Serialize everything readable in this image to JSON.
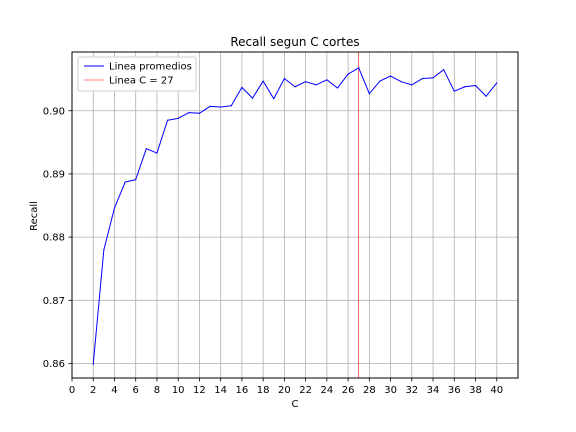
{
  "chart_data": {
    "type": "line",
    "title": "Recall segun C cortes",
    "xlabel": "C",
    "ylabel": "Recall",
    "xlim": [
      0,
      42
    ],
    "ylim": [
      0.8577,
      0.9093
    ],
    "xticks": [
      0,
      2,
      4,
      6,
      8,
      10,
      12,
      14,
      16,
      18,
      20,
      22,
      24,
      26,
      28,
      30,
      32,
      34,
      36,
      38,
      40
    ],
    "yticks": [
      0.86,
      0.87,
      0.88,
      0.89,
      0.9
    ],
    "ytick_labels": [
      "0.86",
      "0.87",
      "0.88",
      "0.89",
      "0.90"
    ],
    "grid": true,
    "legend_position": "top-left",
    "series": [
      {
        "name": "Linea promedios",
        "color": "#0000ff",
        "x": [
          2,
          3,
          4,
          5,
          6,
          7,
          8,
          9,
          10,
          11,
          12,
          13,
          14,
          15,
          16,
          17,
          18,
          19,
          20,
          21,
          22,
          23,
          24,
          25,
          26,
          27,
          28,
          29,
          30,
          31,
          32,
          33,
          34,
          35,
          36,
          37,
          38,
          39,
          40
        ],
        "y": [
          0.8599,
          0.878,
          0.8846,
          0.8887,
          0.8891,
          0.894,
          0.8933,
          0.8985,
          0.8988,
          0.8997,
          0.8996,
          0.9007,
          0.9006,
          0.9008,
          0.9037,
          0.902,
          0.9047,
          0.9019,
          0.9051,
          0.9038,
          0.9046,
          0.9041,
          0.9049,
          0.9036,
          0.9058,
          0.9068,
          0.9027,
          0.9047,
          0.9055,
          0.9046,
          0.9041,
          0.9051,
          0.9052,
          0.9065,
          0.9031,
          0.9038,
          0.904,
          0.9023,
          0.9044
        ]
      }
    ],
    "vlines": [
      {
        "name": "Linea C = 27",
        "x": 27,
        "color": "#ff0000"
      }
    ]
  }
}
